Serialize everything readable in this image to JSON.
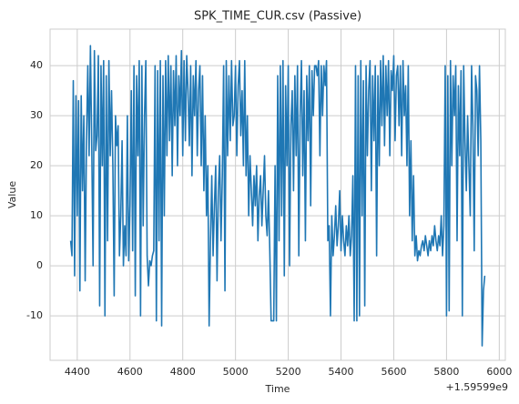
{
  "chart_data": {
    "type": "line",
    "title": "SPK_TIME_CUR.csv (Passive)",
    "x_label": "Time",
    "y_label": "Value",
    "x_offset_label": "+1.59599e9",
    "grid": true,
    "xlim": [
      4297,
      6023
    ],
    "ylim": [
      -18.9,
      47.3
    ],
    "xticks": [
      4400,
      4600,
      4800,
      5000,
      5200,
      5400,
      5600,
      5800,
      6000
    ],
    "yticks": [
      -10,
      0,
      10,
      20,
      30,
      40
    ],
    "x": [
      4375,
      4380,
      4385,
      4390,
      4395,
      4400,
      4405,
      4410,
      4415,
      4420,
      4425,
      4430,
      4435,
      4440,
      4445,
      4450,
      4455,
      4460,
      4465,
      4470,
      4475,
      4480,
      4485,
      4490,
      4495,
      4500,
      4505,
      4510,
      4515,
      4520,
      4525,
      4530,
      4535,
      4540,
      4545,
      4550,
      4555,
      4560,
      4565,
      4570,
      4575,
      4580,
      4585,
      4590,
      4595,
      4600,
      4605,
      4610,
      4615,
      4620,
      4625,
      4630,
      4635,
      4640,
      4645,
      4650,
      4655,
      4660,
      4665,
      4670,
      4675,
      4680,
      4685,
      4690,
      4695,
      4700,
      4705,
      4710,
      4715,
      4720,
      4725,
      4730,
      4735,
      4740,
      4745,
      4750,
      4755,
      4760,
      4765,
      4770,
      4775,
      4780,
      4785,
      4790,
      4795,
      4800,
      4805,
      4810,
      4815,
      4820,
      4825,
      4830,
      4835,
      4840,
      4845,
      4850,
      4855,
      4860,
      4865,
      4870,
      4875,
      4880,
      4885,
      4890,
      4895,
      4900,
      4905,
      4910,
      4915,
      4920,
      4925,
      4930,
      4935,
      4940,
      4945,
      4950,
      4955,
      4960,
      4965,
      4970,
      4975,
      4980,
      4985,
      4990,
      4995,
      5000,
      5005,
      5010,
      5015,
      5020,
      5025,
      5030,
      5035,
      5040,
      5045,
      5050,
      5055,
      5060,
      5065,
      5070,
      5075,
      5080,
      5085,
      5090,
      5095,
      5100,
      5105,
      5110,
      5115,
      5120,
      5125,
      5130,
      5135,
      5140,
      5145,
      5150,
      5155,
      5160,
      5165,
      5170,
      5175,
      5180,
      5185,
      5190,
      5195,
      5200,
      5205,
      5210,
      5215,
      5220,
      5225,
      5230,
      5235,
      5240,
      5245,
      5250,
      5255,
      5260,
      5265,
      5270,
      5275,
      5280,
      5285,
      5290,
      5295,
      5300,
      5305,
      5310,
      5315,
      5320,
      5325,
      5330,
      5335,
      5340,
      5345,
      5350,
      5355,
      5360,
      5365,
      5370,
      5375,
      5380,
      5385,
      5390,
      5395,
      5400,
      5405,
      5410,
      5415,
      5420,
      5425,
      5430,
      5435,
      5440,
      5445,
      5450,
      5455,
      5460,
      5465,
      5470,
      5475,
      5480,
      5485,
      5490,
      5495,
      5500,
      5505,
      5510,
      5515,
      5520,
      5525,
      5530,
      5535,
      5540,
      5545,
      5550,
      5555,
      5560,
      5565,
      5570,
      5575,
      5580,
      5585,
      5590,
      5595,
      5600,
      5605,
      5610,
      5615,
      5620,
      5625,
      5630,
      5635,
      5640,
      5645,
      5650,
      5655,
      5660,
      5665,
      5670,
      5675,
      5680,
      5685,
      5690,
      5695,
      5700,
      5705,
      5710,
      5715,
      5720,
      5725,
      5730,
      5735,
      5740,
      5745,
      5750,
      5755,
      5760,
      5765,
      5770,
      5775,
      5780,
      5785,
      5790,
      5795,
      5800,
      5805,
      5810,
      5815,
      5820,
      5825,
      5830,
      5835,
      5840,
      5845,
      5850,
      5855,
      5860,
      5865,
      5870,
      5875,
      5880,
      5885,
      5890,
      5895,
      5900,
      5905,
      5910,
      5915,
      5920,
      5925,
      5930,
      5935,
      5940,
      5945
    ],
    "series": [
      {
        "name": "Value",
        "color": "#1f77b4",
        "values": [
          5,
          2,
          37,
          -2,
          34,
          10,
          33,
          -5,
          34,
          15,
          30,
          -3,
          25,
          40,
          22,
          44,
          24,
          0,
          43,
          23,
          26,
          42,
          -8,
          40,
          20,
          41,
          -10,
          38,
          5,
          41,
          22,
          35,
          20,
          -6,
          30,
          24,
          28,
          2,
          10,
          25,
          0,
          8,
          2,
          30,
          1,
          12,
          35,
          3,
          40,
          -6,
          38,
          22,
          41,
          -10,
          40,
          8,
          30,
          41,
          2,
          -4,
          1,
          0,
          2,
          3,
          40,
          -11,
          39,
          5,
          41,
          -12,
          38,
          10,
          41,
          22,
          42,
          25,
          40,
          18,
          39,
          28,
          42,
          20,
          38,
          30,
          43,
          22,
          41,
          25,
          42,
          35,
          24,
          40,
          18,
          38,
          30,
          41,
          22,
          35,
          40,
          20,
          38,
          15,
          30,
          10,
          20,
          -12,
          5,
          18,
          2,
          12,
          20,
          -3,
          15,
          22,
          5,
          18,
          40,
          -5,
          41,
          22,
          38,
          25,
          41,
          28,
          30,
          40,
          22,
          36,
          41,
          26,
          35,
          20,
          41,
          18,
          30,
          10,
          22,
          15,
          8,
          18,
          12,
          20,
          5,
          14,
          18,
          8,
          15,
          22,
          10,
          6,
          15,
          3,
          -11,
          -11,
          -11,
          20,
          -11,
          38,
          5,
          40,
          10,
          41,
          -2,
          36,
          20,
          40,
          0,
          28,
          35,
          15,
          38,
          22,
          40,
          2,
          30,
          41,
          18,
          35,
          5,
          38,
          25,
          40,
          12,
          39,
          30,
          40,
          40,
          38,
          41,
          22,
          40,
          30,
          40,
          36,
          41,
          5,
          8,
          -10,
          10,
          2,
          6,
          12,
          4,
          8,
          15,
          3,
          10,
          5,
          2,
          8,
          4,
          10,
          2,
          6,
          18,
          -11,
          40,
          -11,
          38,
          -10,
          41,
          10,
          37,
          -8,
          40,
          22,
          35,
          41,
          15,
          38,
          25,
          40,
          2,
          38,
          20,
          41,
          28,
          42,
          24,
          40,
          30,
          41,
          22,
          39,
          35,
          42,
          25,
          38,
          40,
          28,
          40,
          22,
          41,
          30,
          36,
          20,
          40,
          10,
          25,
          5,
          18,
          2,
          6,
          1,
          3,
          2,
          4,
          5,
          3,
          6,
          4,
          2,
          5,
          3,
          6,
          4,
          8,
          5,
          3,
          6,
          4,
          10,
          2,
          8,
          40,
          -10,
          38,
          -9,
          41,
          20,
          38,
          30,
          40,
          5,
          36,
          22,
          39,
          -10,
          40,
          25,
          15,
          30,
          20,
          10,
          40,
          28,
          3,
          38,
          35,
          22,
          40,
          25,
          -16,
          -5,
          -2
        ]
      }
    ]
  }
}
